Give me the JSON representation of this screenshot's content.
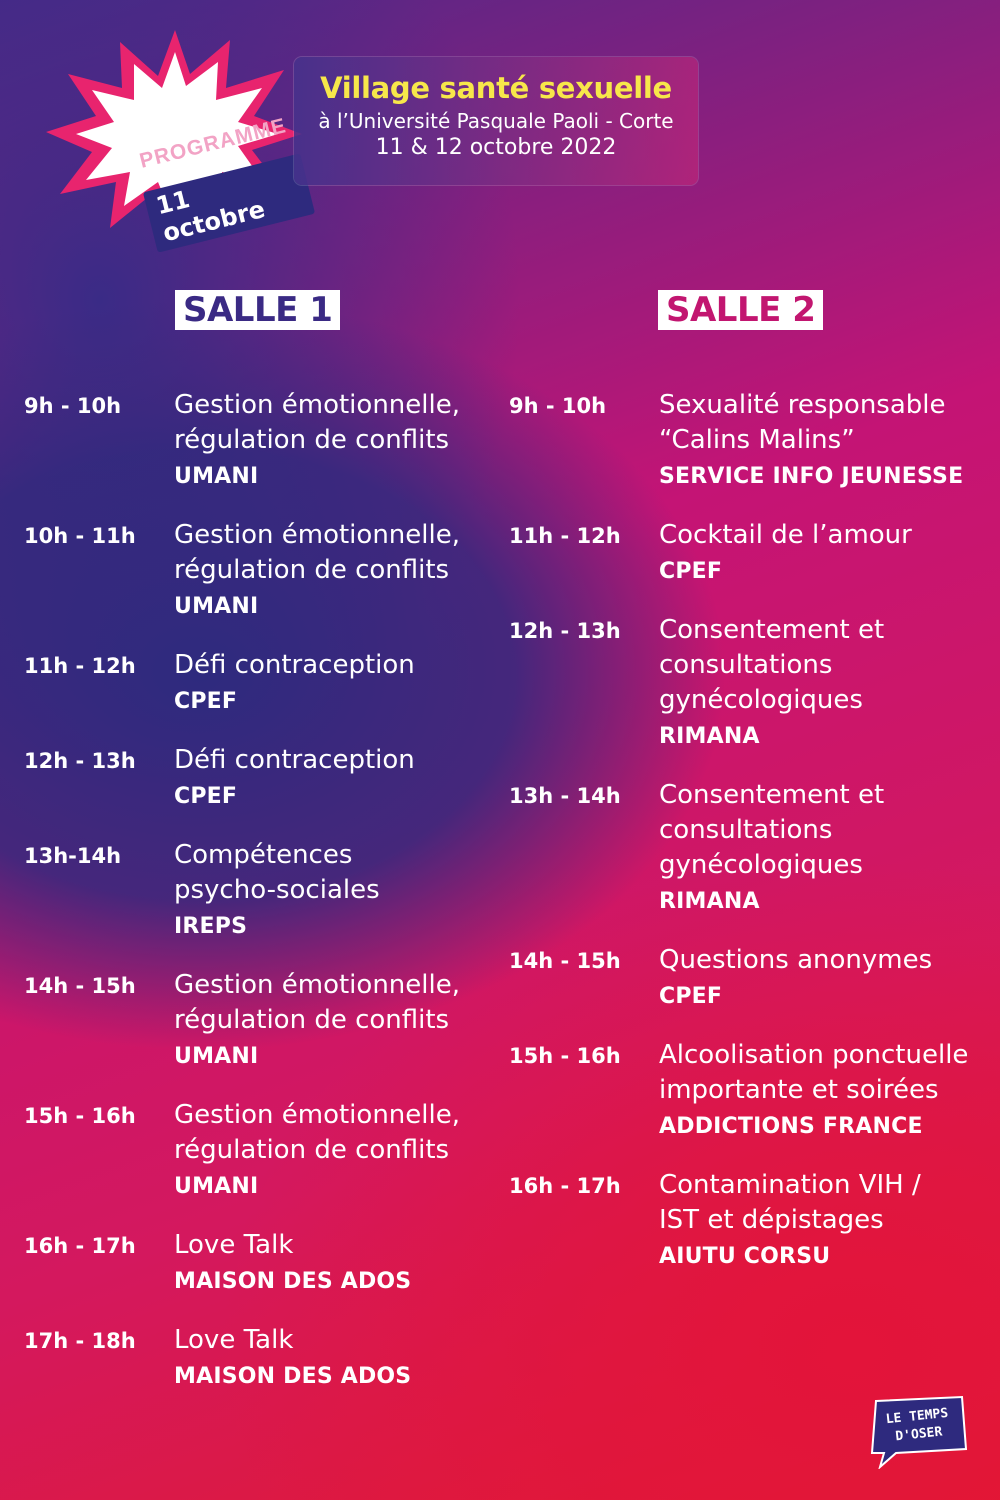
{
  "badge": {
    "label": "PROGRAMME",
    "date": "11 octobre"
  },
  "header": {
    "title": "Village santé sexuelle",
    "place": "à l’Université Pasquale Paoli - Corte",
    "dates": "11 & 12 octobre 2022"
  },
  "rooms": [
    {
      "label": "SALLE 1",
      "slots": [
        {
          "time": "9h - 10h",
          "title": "Gestion émotionnelle,\nrégulation de conflits",
          "org": "UMANI"
        },
        {
          "time": "10h - 11h",
          "title": "Gestion émotionnelle,\nrégulation de conflits",
          "org": "UMANI"
        },
        {
          "time": "11h - 12h",
          "title": "Défi contraception",
          "org": "CPEF"
        },
        {
          "time": "12h - 13h",
          "title": "Défi contraception",
          "org": "CPEF"
        },
        {
          "time": "13h-14h",
          "title": "Compétences\npsycho-sociales",
          "org": "IREPS"
        },
        {
          "time": "14h - 15h",
          "title": "Gestion émotionnelle,\nrégulation de conflits",
          "org": "UMANI"
        },
        {
          "time": "15h - 16h",
          "title": "Gestion émotionnelle,\nrégulation de conflits",
          "org": "UMANI"
        },
        {
          "time": "16h - 17h",
          "title": "Love Talk",
          "org": "MAISON DES ADOS"
        },
        {
          "time": "17h - 18h",
          "title": "Love Talk",
          "org": "MAISON DES ADOS"
        }
      ]
    },
    {
      "label": "SALLE 2",
      "slots": [
        {
          "time": "9h - 10h",
          "title": "Sexualité responsable\n“Calins Malins”",
          "org": "SERVICE INFO JEUNESSE"
        },
        {
          "time": "11h - 12h",
          "title": "Cocktail de l’amour",
          "org": "CPEF"
        },
        {
          "time": "12h - 13h",
          "title": "Consentement et\nconsultations\ngynécologiques",
          "org": "RIMANA"
        },
        {
          "time": "13h - 14h",
          "title": "Consentement et\nconsultations\ngynécologiques",
          "org": "RIMANA"
        },
        {
          "time": "14h - 15h",
          "title": "Questions anonymes",
          "org": "CPEF"
        },
        {
          "time": "15h - 16h",
          "title": "Alcoolisation ponctuelle\nimportante et soirées",
          "org": "ADDICTIONS FRANCE"
        },
        {
          "time": "16h - 17h",
          "title": "Contamination VIH /\nIST et dépistages",
          "org": "AIUTU CORSU"
        }
      ]
    }
  ],
  "logo": {
    "line1": "LE TEMPS",
    "line2": "D'OSER"
  },
  "colors": {
    "header_title": "#f7e74a",
    "navy": "#2e2a7e",
    "magenta": "#c21670",
    "red": "#e21a2e"
  }
}
